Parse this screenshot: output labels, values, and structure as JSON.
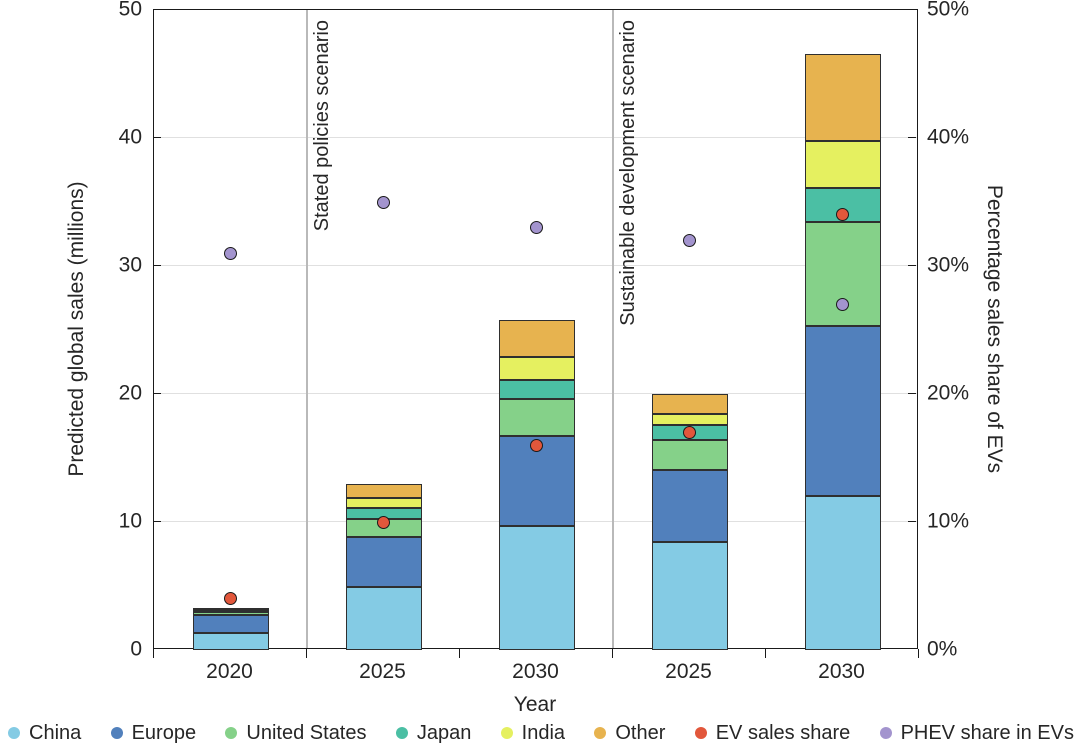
{
  "chart_data": {
    "type": "bar",
    "stacked": true,
    "xlabel": "Year",
    "ylabel_left": "Predicted global sales (millions)",
    "ylabel_right": "Percentage sales share of EVs",
    "ylim": [
      0,
      50
    ],
    "yticks": [
      0,
      10,
      20,
      30,
      40,
      50
    ],
    "left_tick_labels": [
      "0",
      "10",
      "20",
      "30",
      "40",
      "50"
    ],
    "right_tick_labels": [
      "0%",
      "10%",
      "20%",
      "30%",
      "40%",
      "50%"
    ],
    "grid": "horizontal",
    "categories": [
      "2020",
      "2025",
      "2030",
      "2025",
      "2030"
    ],
    "scenario_dividers": [
      {
        "after_index": 1,
        "label": "Stated policies scenario"
      },
      {
        "after_index": 3,
        "label": "Sustainable development scenario"
      }
    ],
    "series": [
      {
        "name": "China",
        "color": "#84CBE4",
        "values": [
          1.3,
          4.9,
          9.7,
          8.4,
          12.0
        ]
      },
      {
        "name": "Europe",
        "color": "#5180BC",
        "values": [
          1.45,
          3.9,
          7.0,
          5.7,
          13.3
        ]
      },
      {
        "name": "United States",
        "color": "#85D189",
        "values": [
          0.2,
          1.4,
          2.9,
          2.3,
          8.1
        ]
      },
      {
        "name": "Japan",
        "color": "#4BBFA4",
        "values": [
          0.1,
          0.9,
          1.5,
          1.2,
          2.7
        ]
      },
      {
        "name": "India",
        "color": "#E5F060",
        "values": [
          0.05,
          0.8,
          1.8,
          0.8,
          3.7
        ]
      },
      {
        "name": "Other",
        "color": "#E7B34F",
        "values": [
          0.2,
          1.1,
          2.9,
          1.6,
          6.8
        ]
      }
    ],
    "point_series": [
      {
        "name": "EV sales share",
        "color": "#E2573B",
        "values": [
          4,
          10,
          16,
          17,
          34
        ]
      },
      {
        "name": "PHEV share in EVs",
        "color": "#A394CE",
        "values": [
          31,
          35,
          33,
          32,
          27
        ]
      }
    ],
    "legend_position": "bottom"
  },
  "colors": {
    "axis": "#1a1a1a",
    "gridline": "#e0e0e0",
    "divider": "#b9b9b9",
    "text": "#262626"
  }
}
